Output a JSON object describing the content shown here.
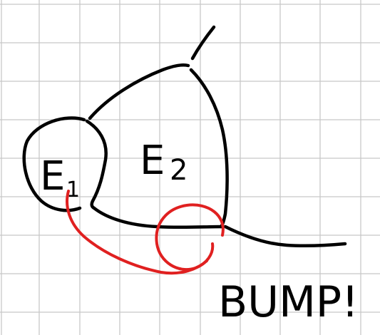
{
  "colors": {
    "background": "#ffffff",
    "grid": "#c8c8c8",
    "ink": "#000000",
    "highlight": "#e02020"
  },
  "labels": {
    "region_1": {
      "letter": "E",
      "index": "1"
    },
    "region_2": {
      "letter": "E",
      "index": "2"
    },
    "annotation": "BUMP!"
  }
}
